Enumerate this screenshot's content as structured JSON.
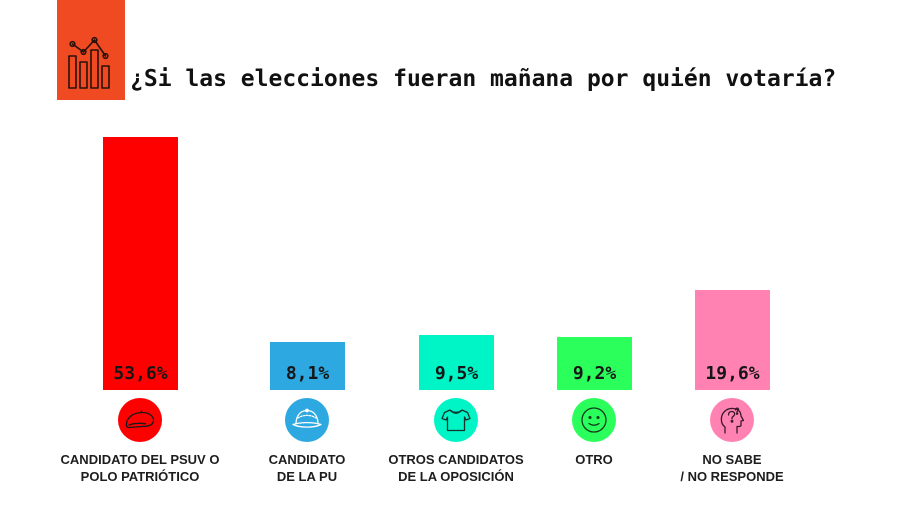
{
  "header": {
    "badge_color": "#EF4A22",
    "icon": "chart-icon"
  },
  "chart_data": {
    "type": "bar",
    "title": "¿Si las elecciones fueran mañana por quién votaría?",
    "categories": [
      "CANDIDATO DEL PSUV O\nPOLO PATRIÓTICO",
      "CANDIDATO\nDE LA PU",
      "OTROS CANDIDATOS\nDE LA OPOSICIÓN",
      "OTRO",
      "NO SABE\n/ NO RESPONDE"
    ],
    "values": [
      53.6,
      8.1,
      9.5,
      9.2,
      19.6
    ],
    "value_labels": [
      "53,6%",
      "8,1%",
      "9,5%",
      "9,2%",
      "19,6%"
    ],
    "colors": [
      "#FF0000",
      "#2EA8E0",
      "#00F5C6",
      "#2BFF5C",
      "#FF82B3"
    ],
    "icons": [
      "beret-icon",
      "cap-icon",
      "t-shirt-icon",
      "smiley-icon",
      "head-question-icon"
    ],
    "xlabel": "",
    "ylabel": "",
    "grid": false
  }
}
